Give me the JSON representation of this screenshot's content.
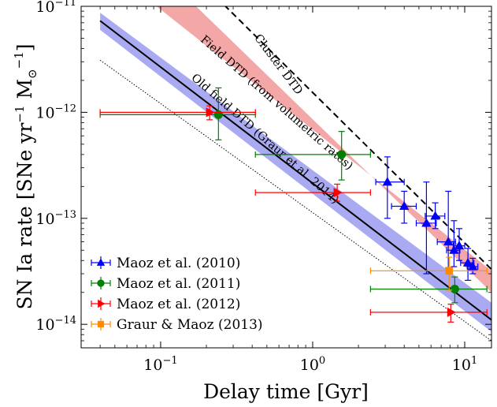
{
  "chart_data": {
    "type": "scatter",
    "xscale": "log",
    "yscale": "log",
    "xlim": [
      0.03,
      15
    ],
    "ylim": [
      6e-15,
      1e-11
    ],
    "xlabel": "Delay time [Gyr]",
    "ylabel": {
      "prefix": "SN Ia rate [SNe yr",
      "exp1": "−1",
      "mid": " M",
      "sub": "⊙",
      "exp2": "−1",
      "suffix": "]"
    },
    "x_ticks": [
      {
        "value": 0.1,
        "base": "10",
        "exp": "−1"
      },
      {
        "value": 1,
        "base": "10",
        "exp": "0"
      },
      {
        "value": 10,
        "base": "10",
        "exp": "1"
      }
    ],
    "y_ticks": [
      {
        "value": 1e-14,
        "base": "10",
        "exp": "−14"
      },
      {
        "value": 1e-13,
        "base": "10",
        "exp": "−13"
      },
      {
        "value": 1e-12,
        "base": "10",
        "exp": "−12"
      },
      {
        "value": 1e-11,
        "base": "10",
        "exp": "−11"
      }
    ],
    "bands": [
      {
        "name": "cluster",
        "color": "#f4a7a7",
        "lower": [
          [
            0.15,
            1.2e-11
          ],
          [
            15,
            2e-14
          ]
        ],
        "upper": [
          [
            0.08,
            1.2e-11
          ],
          [
            15,
            3.2e-14
          ]
        ]
      },
      {
        "name": "field",
        "color": "#aaaaf2",
        "lower": [
          [
            0.04,
            6e-12
          ],
          [
            15,
            8.5e-15
          ]
        ],
        "upper": [
          [
            0.04,
            8.7e-12
          ],
          [
            15,
            1.6e-14
          ]
        ]
      }
    ],
    "lines": [
      {
        "name": "cluster",
        "style": "dashed",
        "width": 2,
        "points": [
          [
            0.235,
            1.2e-11
          ],
          [
            15,
            3.3e-14
          ]
        ]
      },
      {
        "name": "field",
        "style": "solid",
        "width": 2,
        "points": [
          [
            0.04,
            7.3e-12
          ],
          [
            15,
            1.1e-14
          ]
        ]
      },
      {
        "name": "old-field",
        "style": "dotted",
        "width": 1,
        "points": [
          [
            0.04,
            3.1e-12
          ],
          [
            15,
            7e-15
          ]
        ]
      }
    ],
    "annotations": [
      {
        "text": "Cluster DTD",
        "x": 0.57,
        "y": 2.7e-12,
        "angle": 53
      },
      {
        "text": "Field DTD (from volumetric rates)",
        "x": 0.56,
        "y": 1.16e-12,
        "angle": 41
      },
      {
        "text": "Old field DTD (Graur et al. 2014)",
        "x": 0.47,
        "y": 5.3e-13,
        "angle": 41
      }
    ],
    "series": [
      {
        "name": "Maoz et al. (2010)",
        "color": "#0000ff",
        "marker": "triangle",
        "points": [
          {
            "x": 3.1,
            "y": 2.2e-13,
            "xerr": [
              2.6,
              4.0
            ],
            "yerr": [
              1e-13,
              3.8e-13
            ]
          },
          {
            "x": 4.0,
            "y": 1.3e-13,
            "xerr": [
              3.3,
              4.8
            ],
            "yerr": [
              9e-14,
              1.8e-13
            ]
          },
          {
            "x": 5.6,
            "y": 9e-14,
            "xerr": [
              4.8,
              6.5
            ],
            "yerr": [
              3e-14,
              2.2e-13
            ]
          },
          {
            "x": 6.4,
            "y": 1.05e-13,
            "xerr": [
              5.5,
              7.4
            ],
            "yerr": [
              8e-14,
              1.4e-13
            ]
          },
          {
            "x": 7.8,
            "y": 6e-14,
            "xerr": [
              6.6,
              8.7
            ],
            "yerr": [
              3.4e-14,
              1.8e-13
            ]
          },
          {
            "x": 8.5,
            "y": 5e-14,
            "xerr": [
              7.6,
              9.3
            ],
            "yerr": [
              3.5e-14,
              9.5e-14
            ]
          },
          {
            "x": 9.2,
            "y": 5.5e-14,
            "xerr": [
              8.4,
              10.0
            ],
            "yerr": [
              4e-14,
              8e-14
            ]
          },
          {
            "x": 10.5,
            "y": 3.8e-14,
            "xerr": [
              9.4,
              11.5
            ],
            "yerr": [
              2.6e-14,
              5.2e-14
            ]
          },
          {
            "x": 11.3,
            "y": 3.5e-14,
            "xerr": [
              10.4,
              12.2
            ],
            "yerr": [
              3e-14,
              4.2e-14
            ]
          }
        ]
      },
      {
        "name": "Maoz et al. (2011)",
        "color": "#008000",
        "marker": "circle",
        "points": [
          {
            "x": 0.24,
            "y": 9.5e-13,
            "xerr": [
              0.04,
              0.42
            ],
            "yerr": [
              5.5e-13,
              1.7e-12
            ]
          },
          {
            "x": 1.55,
            "y": 4e-13,
            "xerr": [
              0.42,
              2.4
            ],
            "yerr": [
              2.3e-13,
              6.6e-13
            ]
          },
          {
            "x": 8.6,
            "y": 2.15e-14,
            "xerr": [
              2.4,
              14.0
            ],
            "yerr": [
              1.6e-14,
              2.8e-14
            ]
          }
        ]
      },
      {
        "name": "Maoz et al. (2012)",
        "color": "#ff0000",
        "marker": "triangle-right",
        "points": [
          {
            "x": 0.21,
            "y": 1e-12,
            "xerr": [
              0.04,
              0.42
            ],
            "yerr": [
              8.5e-13,
              1.15e-12
            ]
          },
          {
            "x": 1.45,
            "y": 1.75e-13,
            "xerr": [
              0.42,
              2.4
            ],
            "yerr": [
              1.45e-13,
              2.1e-13
            ]
          },
          {
            "x": 8.1,
            "y": 1.3e-14,
            "xerr": [
              2.4,
              14.0
            ],
            "yerr": [
              1.05e-14,
              1.55e-14
            ]
          }
        ]
      },
      {
        "name": "Graur & Maoz (2013)",
        "color": "#ff8c00",
        "marker": "square",
        "points": [
          {
            "x": 7.9,
            "y": 3.2e-14,
            "xerr": [
              2.4,
              14.0
            ],
            "yerr": [
              2.1e-14,
              4.3e-14
            ]
          }
        ]
      }
    ],
    "legend": {
      "position": "bottom-left"
    }
  }
}
